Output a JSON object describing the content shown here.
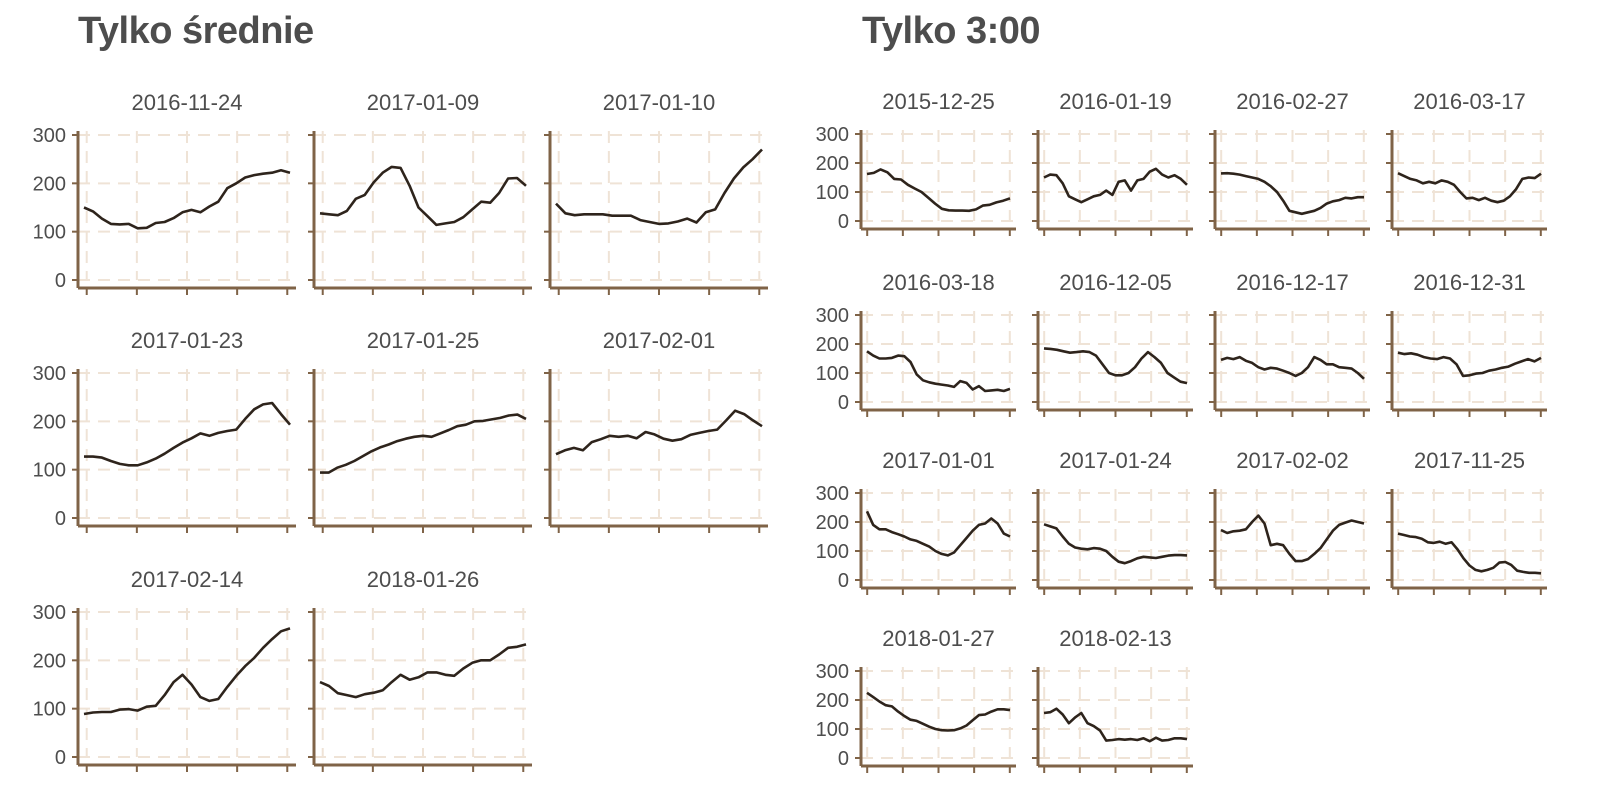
{
  "groups": [
    {
      "title": "Tylko średnie"
    },
    {
      "title": "Tylko 3:00"
    }
  ],
  "chart_data": [
    {
      "type": "line",
      "title": "Tylko średnie",
      "ylim": [
        0,
        300
      ],
      "yticks": [
        0,
        100,
        200,
        300
      ],
      "grid": true,
      "panels": [
        {
          "title": "2016-11-24",
          "values": [
            150,
            142,
            127,
            116,
            115,
            116,
            107,
            108,
            118,
            120,
            128,
            140,
            145,
            140,
            152,
            162,
            190,
            200,
            212,
            217,
            220,
            222,
            227,
            222
          ]
        },
        {
          "title": "2017-01-09",
          "values": [
            138,
            136,
            134,
            143,
            168,
            176,
            202,
            222,
            234,
            232,
            195,
            150,
            132,
            114,
            117,
            120,
            130,
            146,
            162,
            160,
            180,
            210,
            211,
            195
          ]
        },
        {
          "title": "2017-01-10",
          "values": [
            158,
            138,
            134,
            136,
            136,
            136,
            133,
            133,
            133,
            124,
            120,
            116,
            117,
            121,
            127,
            119,
            140,
            146,
            180,
            210,
            233,
            250,
            270
          ]
        },
        {
          "title": "2017-01-23",
          "values": [
            127,
            127,
            125,
            118,
            112,
            109,
            109,
            115,
            123,
            133,
            145,
            156,
            165,
            175,
            170,
            176,
            180,
            183,
            205,
            225,
            235,
            238,
            215,
            193
          ]
        },
        {
          "title": "2017-01-25",
          "values": [
            94,
            94,
            104,
            110,
            118,
            128,
            138,
            146,
            152,
            159,
            164,
            168,
            170,
            168,
            175,
            182,
            190,
            193,
            200,
            201,
            204,
            207,
            212,
            214,
            205
          ]
        },
        {
          "title": "2017-02-01",
          "values": [
            132,
            140,
            145,
            140,
            157,
            163,
            170,
            168,
            170,
            165,
            178,
            173,
            164,
            160,
            163,
            172,
            176,
            180,
            183,
            202,
            222,
            215,
            202,
            190
          ]
        },
        {
          "title": "2017-02-14",
          "values": [
            89,
            92,
            93,
            93,
            98,
            99,
            96,
            104,
            106,
            128,
            155,
            170,
            150,
            124,
            116,
            120,
            145,
            168,
            188,
            205,
            226,
            244,
            260,
            266
          ]
        },
        {
          "title": "2018-01-26",
          "values": [
            155,
            147,
            132,
            128,
            124,
            130,
            133,
            138,
            155,
            170,
            160,
            165,
            175,
            175,
            170,
            168,
            183,
            195,
            200,
            200,
            212,
            226,
            228,
            233
          ]
        }
      ]
    },
    {
      "type": "line",
      "title": "Tylko 3:00",
      "ylim": [
        0,
        300
      ],
      "yticks": [
        0,
        100,
        200,
        300
      ],
      "grid": true,
      "panels": [
        {
          "title": "2015-12-25",
          "values": [
            162,
            166,
            178,
            168,
            145,
            143,
            125,
            112,
            100,
            80,
            60,
            42,
            37,
            36,
            36,
            35,
            40,
            53,
            56,
            64,
            70,
            78
          ]
        },
        {
          "title": "2016-01-19",
          "values": [
            150,
            160,
            158,
            130,
            85,
            75,
            65,
            75,
            85,
            90,
            105,
            90,
            135,
            140,
            105,
            140,
            145,
            170,
            180,
            160,
            150,
            158,
            145,
            125
          ]
        },
        {
          "title": "2016-02-27",
          "values": [
            164,
            165,
            163,
            160,
            155,
            150,
            145,
            135,
            120,
            100,
            70,
            35,
            30,
            25,
            30,
            35,
            45,
            60,
            68,
            72,
            80,
            78,
            82,
            82
          ]
        },
        {
          "title": "2016-03-17",
          "values": [
            165,
            155,
            145,
            140,
            130,
            135,
            130,
            140,
            135,
            125,
            100,
            78,
            80,
            72,
            80,
            70,
            65,
            70,
            85,
            110,
            145,
            150,
            148,
            163
          ]
        },
        {
          "title": "2016-03-18",
          "values": [
            175,
            160,
            150,
            150,
            152,
            160,
            158,
            138,
            95,
            75,
            68,
            63,
            60,
            57,
            52,
            72,
            66,
            43,
            55,
            38,
            40,
            42,
            38,
            45
          ]
        },
        {
          "title": "2016-12-05",
          "values": [
            185,
            183,
            180,
            175,
            170,
            172,
            175,
            172,
            160,
            130,
            100,
            92,
            92,
            100,
            120,
            150,
            172,
            155,
            135,
            100,
            85,
            70,
            65
          ]
        },
        {
          "title": "2016-12-17",
          "values": [
            145,
            152,
            148,
            155,
            142,
            135,
            120,
            112,
            118,
            115,
            108,
            100,
            90,
            100,
            120,
            155,
            145,
            130,
            130,
            120,
            118,
            115,
            100,
            80
          ]
        },
        {
          "title": "2016-12-31",
          "values": [
            170,
            165,
            168,
            163,
            155,
            150,
            148,
            155,
            150,
            130,
            90,
            92,
            98,
            100,
            108,
            112,
            118,
            122,
            132,
            140,
            148,
            140,
            152
          ]
        },
        {
          "title": "2017-01-01",
          "values": [
            237,
            190,
            175,
            175,
            165,
            158,
            150,
            140,
            135,
            125,
            115,
            100,
            90,
            85,
            95,
            120,
            145,
            170,
            190,
            195,
            212,
            195,
            160,
            150
          ]
        },
        {
          "title": "2017-01-24",
          "values": [
            192,
            185,
            178,
            150,
            125,
            112,
            108,
            106,
            110,
            108,
            100,
            80,
            63,
            58,
            65,
            75,
            80,
            78,
            76,
            80,
            84,
            86,
            86,
            85
          ]
        },
        {
          "title": "2017-02-02",
          "values": [
            172,
            162,
            168,
            170,
            175,
            200,
            222,
            195,
            120,
            125,
            120,
            90,
            65,
            65,
            72,
            90,
            110,
            140,
            170,
            190,
            198,
            205,
            200,
            195
          ]
        },
        {
          "title": "2017-11-25",
          "values": [
            160,
            155,
            150,
            148,
            142,
            130,
            128,
            132,
            125,
            130,
            105,
            75,
            50,
            35,
            30,
            35,
            42,
            60,
            62,
            52,
            32,
            28,
            25,
            25,
            23
          ]
        },
        {
          "title": "2018-01-27",
          "values": [
            225,
            210,
            195,
            182,
            178,
            160,
            145,
            132,
            128,
            118,
            108,
            100,
            96,
            95,
            96,
            102,
            112,
            130,
            148,
            150,
            160,
            168,
            168,
            165
          ]
        },
        {
          "title": "2018-02-13",
          "values": [
            155,
            158,
            170,
            150,
            120,
            140,
            155,
            120,
            110,
            95,
            60,
            62,
            65,
            63,
            65,
            62,
            68,
            58,
            70,
            60,
            62,
            68,
            68,
            65
          ]
        }
      ]
    }
  ]
}
